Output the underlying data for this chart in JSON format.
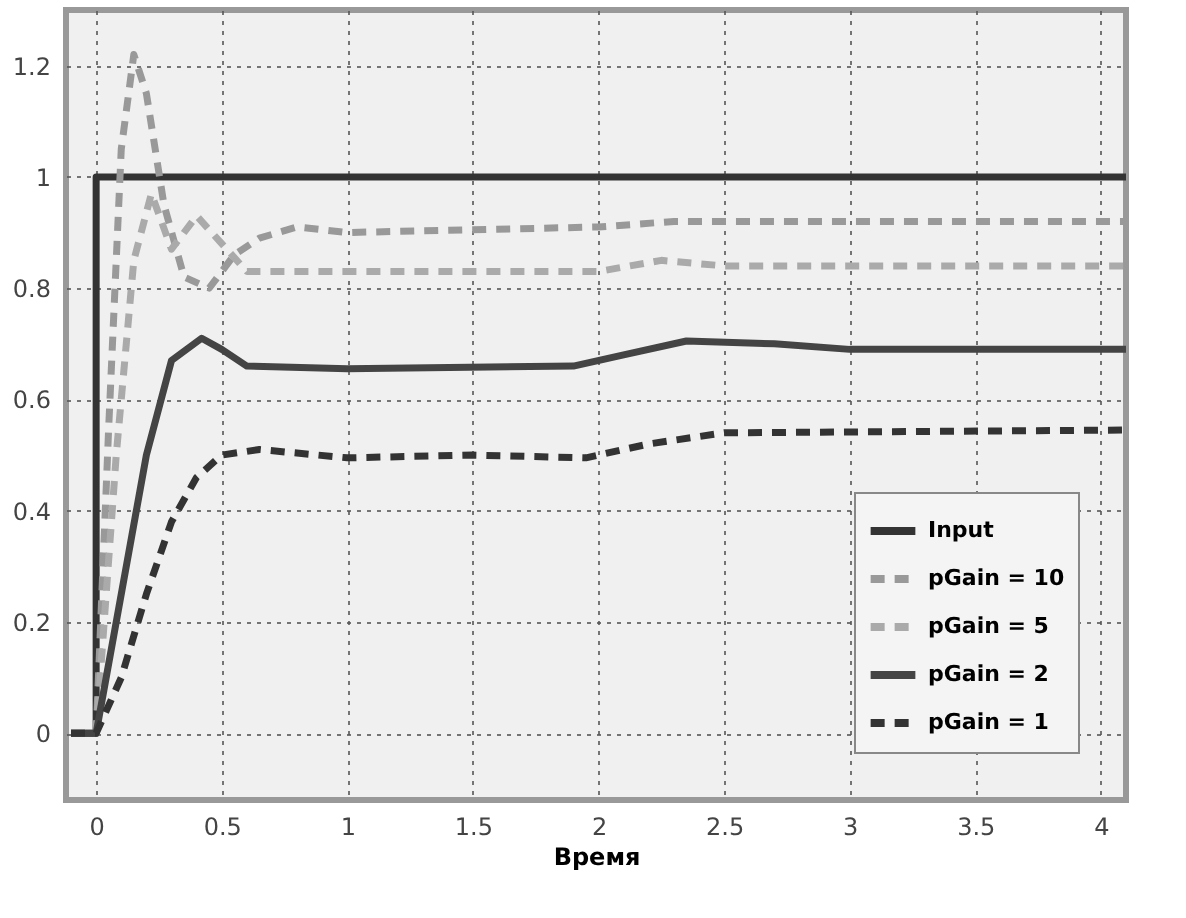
{
  "chart_data": {
    "type": "line",
    "xlabel": "Время",
    "xlim": [
      -0.12,
      4.1
    ],
    "ylim": [
      -0.12,
      1.3
    ],
    "xticks": [
      0,
      0.5,
      1,
      1.5,
      2,
      2.5,
      3,
      3.5,
      4
    ],
    "yticks": [
      0,
      0.2,
      0.4,
      0.6,
      0.8,
      1,
      1.2
    ],
    "grid": true,
    "legend": "bottom right",
    "marker": "none",
    "series": [
      {
        "name": "Input",
        "color": "#333333",
        "line_style": "solid",
        "x": [
          -0.1,
          0,
          0,
          4.1
        ],
        "values": [
          0,
          0,
          1,
          1
        ]
      },
      {
        "name": "pGain = 10",
        "color": "#999999",
        "line_style": "dashed",
        "x": [
          -0.1,
          0,
          0.05,
          0.1,
          0.15,
          0.2,
          0.27,
          0.35,
          0.45,
          0.55,
          0.65,
          0.8,
          1,
          2,
          2.3,
          4.1
        ],
        "values": [
          0,
          0,
          0.55,
          1.05,
          1.22,
          1.15,
          0.95,
          0.82,
          0.8,
          0.86,
          0.89,
          0.91,
          0.9,
          0.91,
          0.92,
          0.92
        ]
      },
      {
        "name": "pGain = 5",
        "color": "#aaaaaa",
        "line_style": "dashed",
        "x": [
          -0.1,
          0,
          0.08,
          0.15,
          0.22,
          0.3,
          0.4,
          0.5,
          0.6,
          0.8,
          2,
          2.25,
          2.5,
          4.1
        ],
        "values": [
          0,
          0,
          0.5,
          0.85,
          0.97,
          0.87,
          0.93,
          0.88,
          0.83,
          0.83,
          0.83,
          0.85,
          0.84,
          0.84
        ]
      },
      {
        "name": "pGain = 2",
        "color": "#444444",
        "line_style": "solid",
        "x": [
          -0.1,
          0,
          0.1,
          0.2,
          0.3,
          0.42,
          0.5,
          0.6,
          1,
          1.9,
          2.1,
          2.35,
          2.7,
          3,
          4.1
        ],
        "values": [
          0,
          0,
          0.25,
          0.5,
          0.67,
          0.71,
          0.69,
          0.66,
          0.655,
          0.66,
          0.68,
          0.705,
          0.7,
          0.69,
          0.69
        ]
      },
      {
        "name": "pGain = 1",
        "color": "#333333",
        "line_style": "dashed",
        "x": [
          -0.1,
          0,
          0.1,
          0.2,
          0.3,
          0.4,
          0.5,
          0.65,
          1,
          1.5,
          1.95,
          2.2,
          2.5,
          4.1
        ],
        "values": [
          0,
          0,
          0.1,
          0.25,
          0.38,
          0.46,
          0.5,
          0.51,
          0.495,
          0.5,
          0.495,
          0.52,
          0.54,
          0.545
        ]
      }
    ]
  }
}
